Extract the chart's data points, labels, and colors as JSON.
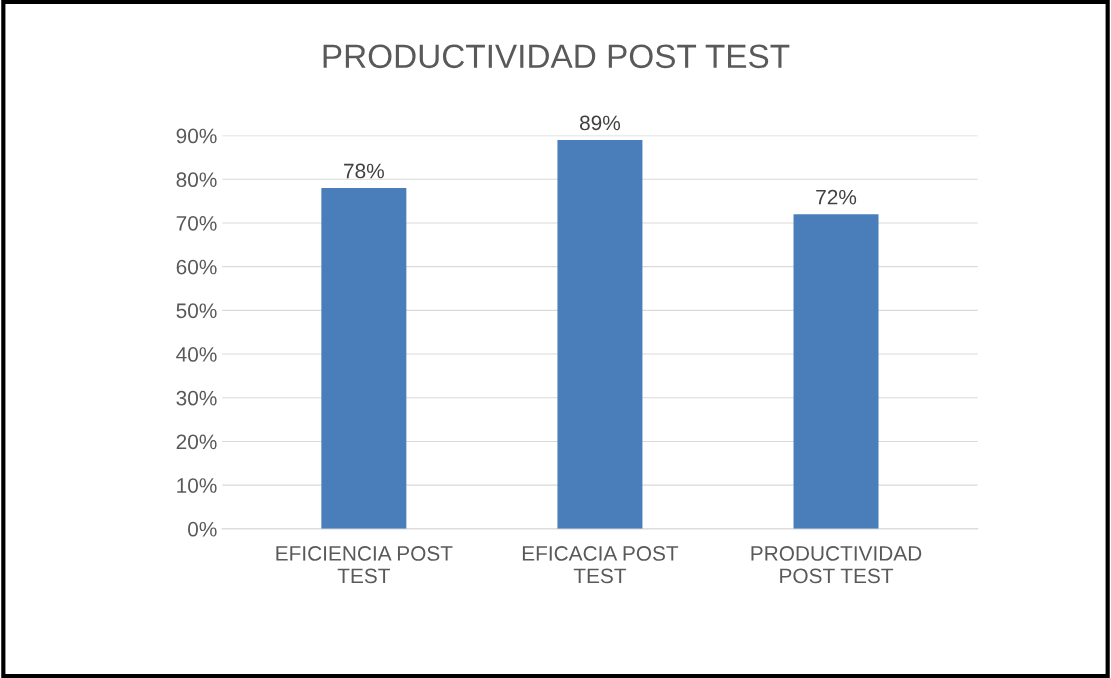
{
  "chart_data": {
    "type": "bar",
    "title": "PRODUCTIVIDAD POST TEST",
    "categories": [
      "EFICIENCIA POST\nTEST",
      "EFICACIA POST\nTEST",
      "PRODUCTIVIDAD\nPOST TEST"
    ],
    "values": [
      78,
      89,
      72
    ],
    "value_labels": [
      "78%",
      "89%",
      "72%"
    ],
    "color": "#4a7ebb",
    "ylim": [
      0,
      90
    ],
    "yticks": [
      {
        "value": 0,
        "label": "0%"
      },
      {
        "value": 10,
        "label": "10%"
      },
      {
        "value": 20,
        "label": "20%"
      },
      {
        "value": 30,
        "label": "30%"
      },
      {
        "value": 40,
        "label": "40%"
      },
      {
        "value": 50,
        "label": "50%"
      },
      {
        "value": 60,
        "label": "60%"
      },
      {
        "value": 70,
        "label": "70%"
      },
      {
        "value": 80,
        "label": "80%"
      },
      {
        "value": 90,
        "label": "90%"
      }
    ],
    "grid": "y",
    "legend": false
  }
}
